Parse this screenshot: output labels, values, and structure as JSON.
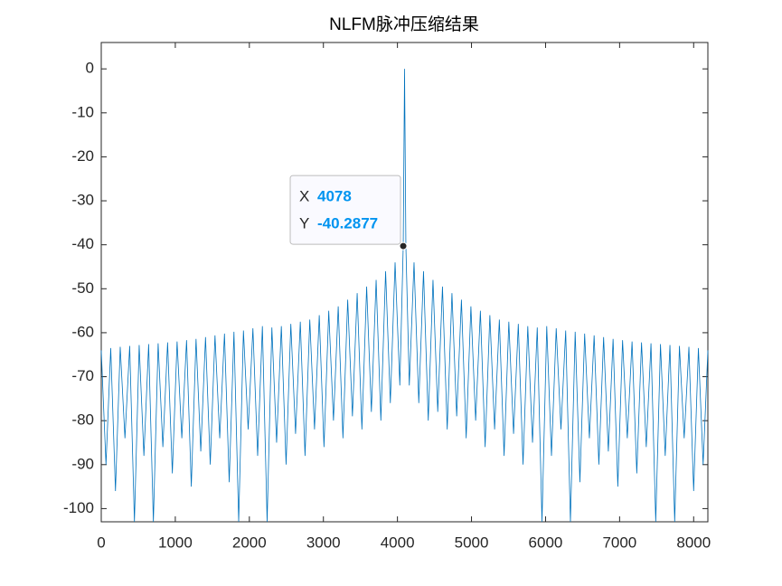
{
  "chart_data": {
    "type": "line",
    "title": "NLFM脉冲压缩结果",
    "x": [
      0,
      64,
      128,
      192,
      256,
      320,
      384,
      448,
      512,
      576,
      640,
      704,
      768,
      832,
      896,
      960,
      1024,
      1088,
      1152,
      1216,
      1280,
      1344,
      1408,
      1472,
      1536,
      1600,
      1664,
      1728,
      1792,
      1856,
      1920,
      1984,
      2048,
      2112,
      2176,
      2240,
      2304,
      2368,
      2432,
      2496,
      2560,
      2624,
      2688,
      2752,
      2816,
      2880,
      2944,
      3008,
      3072,
      3136,
      3200,
      3264,
      3328,
      3392,
      3456,
      3520,
      3584,
      3648,
      3712,
      3776,
      3840,
      3904,
      3968,
      4032,
      4078,
      4096,
      4114,
      4160,
      4224,
      4288,
      4352,
      4416,
      4480,
      4544,
      4608,
      4672,
      4736,
      4800,
      4864,
      4928,
      4992,
      5056,
      5120,
      5184,
      5248,
      5312,
      5376,
      5440,
      5504,
      5568,
      5632,
      5696,
      5760,
      5824,
      5888,
      5952,
      6016,
      6080,
      6144,
      6208,
      6272,
      6336,
      6400,
      6464,
      6528,
      6592,
      6656,
      6720,
      6784,
      6848,
      6912,
      6976,
      7040,
      7104,
      7168,
      7232,
      7296,
      7360,
      7424,
      7488,
      7552,
      7616,
      7680,
      7744,
      7808,
      7872,
      7936,
      8000,
      8064,
      8128,
      8192
    ],
    "series": [
      {
        "name": "NLFM",
        "color": "#0072bd",
        "values": [
          -64,
          -90,
          -63.5,
          -96,
          -63.2,
          -84,
          -63,
          -103,
          -62.8,
          -88,
          -62.6,
          -103,
          -62.4,
          -86,
          -62.2,
          -92,
          -62,
          -84,
          -61.7,
          -95,
          -61.4,
          -87,
          -61,
          -90,
          -60.6,
          -84,
          -60.2,
          -94,
          -59.8,
          -103,
          -59.5,
          -82,
          -59,
          -88,
          -58.5,
          -103,
          -58.8,
          -85,
          -58.5,
          -90,
          -58,
          -83,
          -57.5,
          -88,
          -57,
          -82,
          -56,
          -86,
          -55,
          -80,
          -54,
          -84,
          -52.5,
          -79,
          -51,
          -82,
          -49.5,
          -78,
          -48,
          -80,
          -46,
          -76,
          -44,
          -72,
          -40.2877,
          0,
          -40.3,
          -72,
          -44,
          -76,
          -46,
          -80,
          -48,
          -78,
          -49.5,
          -82,
          -51,
          -79,
          -52.5,
          -84,
          -54,
          -80,
          -55,
          -86,
          -56,
          -82,
          -57,
          -88,
          -57.5,
          -83,
          -58,
          -90,
          -58.5,
          -85,
          -58.8,
          -103,
          -58.5,
          -88,
          -59,
          -82,
          -59.5,
          -103,
          -59.8,
          -94,
          -60.2,
          -84,
          -60.6,
          -90,
          -61,
          -87,
          -61.4,
          -95,
          -61.7,
          -84,
          -62,
          -92,
          -62.2,
          -86,
          -62.4,
          -103,
          -62.6,
          -88,
          -62.8,
          -103,
          -63,
          -84,
          -63.2,
          -96,
          -63.5,
          -90,
          -64
        ]
      }
    ],
    "xlim": [
      0,
      8192
    ],
    "ylim": [
      -103,
      6
    ],
    "xticks": [
      0,
      1000,
      2000,
      3000,
      4000,
      5000,
      6000,
      7000,
      8000
    ],
    "yticks": [
      0,
      -10,
      -20,
      -30,
      -40,
      -50,
      -60,
      -70,
      -80,
      -90,
      -100
    ],
    "datatip": {
      "x_label": "X",
      "x": 4078,
      "y_label": "Y",
      "y": -40.2877
    }
  }
}
